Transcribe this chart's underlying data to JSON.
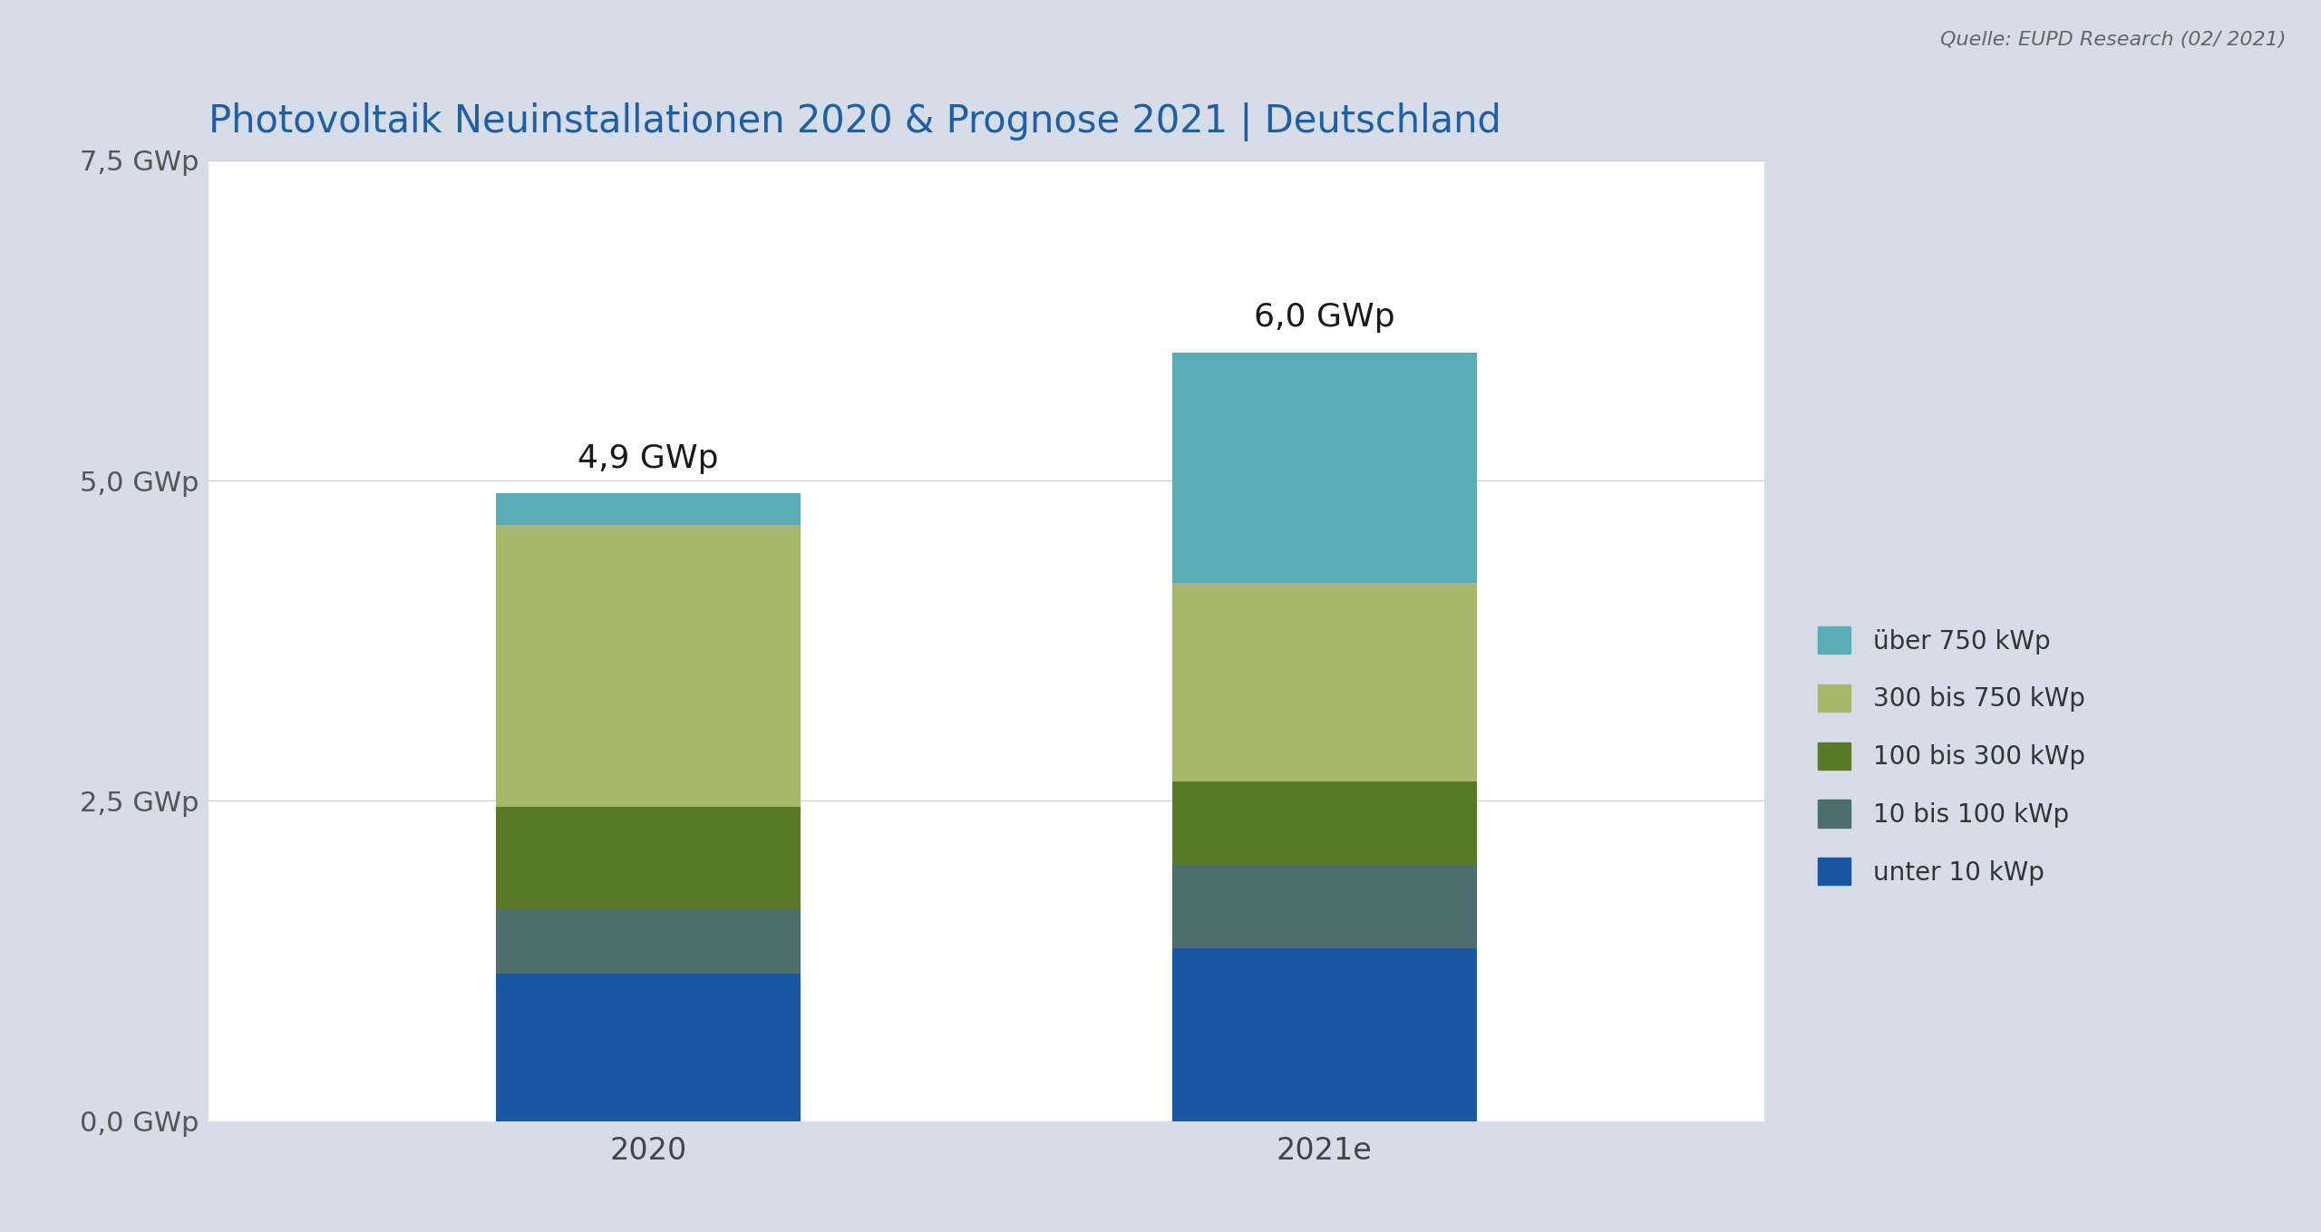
{
  "title": "Photovoltaik Neuinstallationen 2020 & Prognose 2021 | Deutschland",
  "source_text": "Quelle: EUPD Research (02/ 2021)",
  "categories": [
    "2020",
    "2021e"
  ],
  "segments": [
    {
      "label": "unter 10 kWp",
      "color": "#1857a4",
      "values": [
        1.15,
        1.35
      ]
    },
    {
      "label": "10 bis 100 kWp",
      "color": "#4e6e6e",
      "values": [
        0.5,
        0.65
      ]
    },
    {
      "label": "100 bis 300 kWp",
      "color": "#5a7a28",
      "values": [
        0.8,
        0.65
      ]
    },
    {
      "label": "300 bis 750 kWp",
      "color": "#a8b86a",
      "values": [
        2.2,
        1.55
      ]
    },
    {
      "label": "über 750 kWp",
      "color": "#5aacb8",
      "values": [
        0.25,
        1.8
      ]
    }
  ],
  "totals": [
    "4,9 GWp",
    "6,0 GWp"
  ],
  "total_values": [
    4.9,
    6.0
  ],
  "ylim": [
    0,
    7.5
  ],
  "yticks": [
    0.0,
    2.5,
    5.0,
    7.5
  ],
  "ytick_labels": [
    "0,0 GWp",
    "2,5 GWp",
    "5,0 GWp",
    "7,5 GWp"
  ],
  "background_color": "#d6dde8",
  "plot_background": "#ffffff",
  "title_color": "#1f5fa6",
  "bar_width": 0.45,
  "figsize": [
    25.6,
    13.59
  ],
  "dpi": 100,
  "legend_colors": {
    "über 750 kWp": "#5aacb8",
    "300 bis 750 kWp": "#a8b86a",
    "100 bis 300 kWp": "#5a7a28",
    "10 bis 100 kWp": "#4e6e6e",
    "unter 10 kWp": "#1857a4"
  }
}
